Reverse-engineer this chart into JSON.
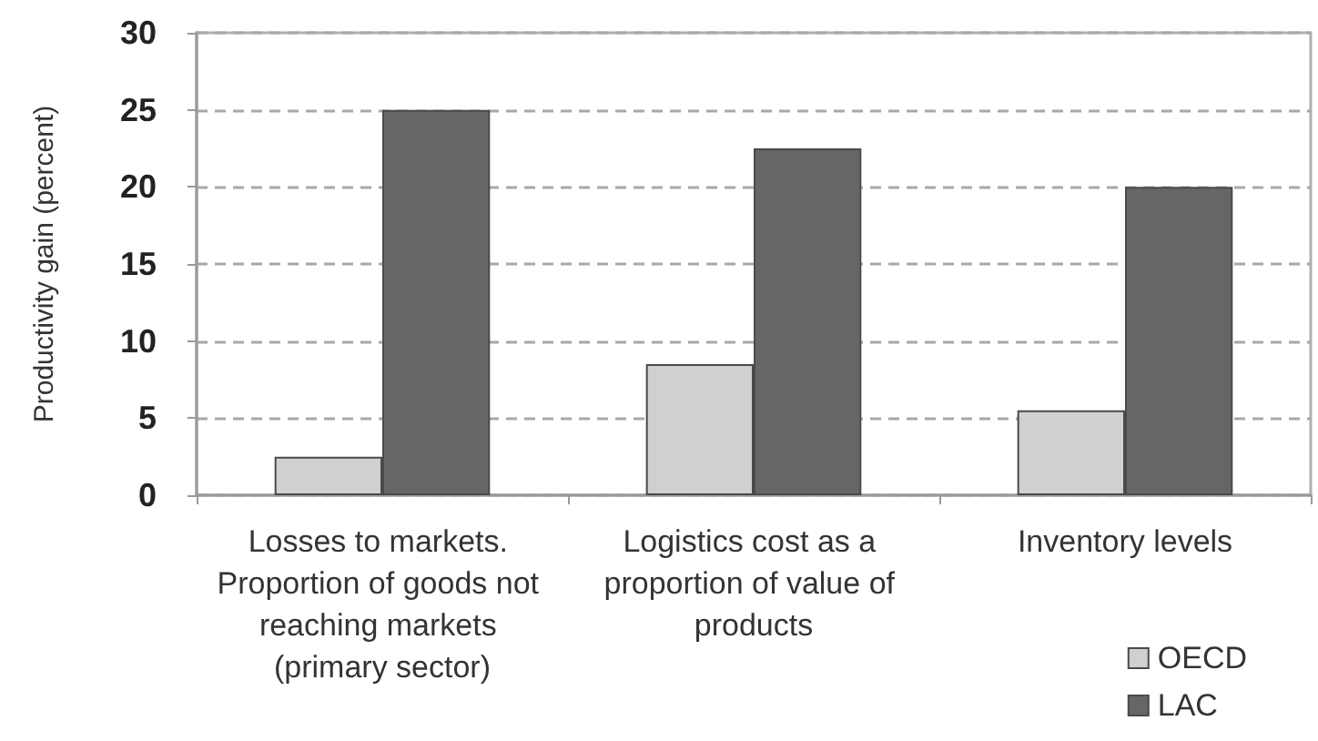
{
  "chart_data": {
    "type": "bar",
    "ylabel": "Productivity gain (percent)",
    "categories": [
      "Losses to markets. Proportion of goods not reaching markets (primary sector)",
      "Logistics cost as a proportion of value of products",
      "Inventory levels"
    ],
    "series": [
      {
        "name": "OECD",
        "color": "#d0d0d0",
        "values": [
          2.5,
          8.5,
          5.5
        ]
      },
      {
        "name": "LAC",
        "color": "#666666",
        "values": [
          25,
          22.5,
          20
        ]
      }
    ],
    "ylim": [
      0,
      30
    ],
    "yticks": [
      0,
      5,
      10,
      15,
      20,
      25,
      30
    ],
    "grid": "y",
    "legend": "bottom right"
  }
}
